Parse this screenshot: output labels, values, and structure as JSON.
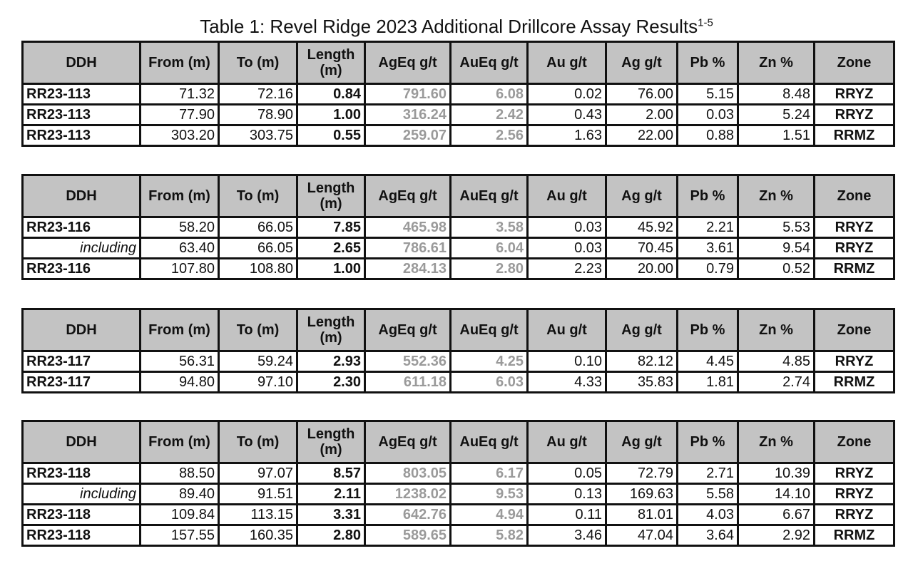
{
  "title": "Table 1: Revel Ridge 2023 Additional Drillcore Assay Results",
  "title_superscript": "1-5",
  "columns": [
    "DDH",
    "From (m)",
    "To (m)",
    "Length (m)",
    "AgEq g/t",
    "AuEq g/t",
    "Au g/t",
    "Ag g/t",
    "Pb %",
    "Zn %",
    "Zone"
  ],
  "tables": [
    {
      "rows": [
        [
          "RR23-113",
          "71.32",
          "72.16",
          "0.84",
          "791.60",
          "6.08",
          "0.02",
          "76.00",
          "5.15",
          "8.48",
          "RRYZ"
        ],
        [
          "RR23-113",
          "77.90",
          "78.90",
          "1.00",
          "316.24",
          "2.42",
          "0.43",
          "2.00",
          "0.03",
          "5.24",
          "RRYZ"
        ],
        [
          "RR23-113",
          "303.20",
          "303.75",
          "0.55",
          "259.07",
          "2.56",
          "1.63",
          "22.00",
          "0.88",
          "1.51",
          "RRMZ"
        ]
      ]
    },
    {
      "rows": [
        [
          "RR23-116",
          "58.20",
          "66.05",
          "7.85",
          "465.98",
          "3.58",
          "0.03",
          "45.92",
          "2.21",
          "5.53",
          "RRYZ"
        ],
        [
          "including",
          "63.40",
          "66.05",
          "2.65",
          "786.61",
          "6.04",
          "0.03",
          "70.45",
          "3.61",
          "9.54",
          "RRYZ"
        ],
        [
          "RR23-116",
          "107.80",
          "108.80",
          "1.00",
          "284.13",
          "2.80",
          "2.23",
          "20.00",
          "0.79",
          "0.52",
          "RRMZ"
        ]
      ]
    },
    {
      "rows": [
        [
          "RR23-117",
          "56.31",
          "59.24",
          "2.93",
          "552.36",
          "4.25",
          "0.10",
          "82.12",
          "4.45",
          "4.85",
          "RRYZ"
        ],
        [
          "RR23-117",
          "94.80",
          "97.10",
          "2.30",
          "611.18",
          "6.03",
          "4.33",
          "35.83",
          "1.81",
          "2.74",
          "RRMZ"
        ]
      ]
    },
    {
      "rows": [
        [
          "RR23-118",
          "88.50",
          "97.07",
          "8.57",
          "803.05",
          "6.17",
          "0.05",
          "72.79",
          "2.71",
          "10.39",
          "RRYZ"
        ],
        [
          "including",
          "89.40",
          "91.51",
          "2.11",
          "1238.02",
          "9.53",
          "0.13",
          "169.63",
          "5.58",
          "14.10",
          "RRYZ"
        ],
        [
          "RR23-118",
          "109.84",
          "113.15",
          "3.31",
          "642.76",
          "4.94",
          "0.11",
          "81.01",
          "4.03",
          "6.67",
          "RRYZ"
        ],
        [
          "RR23-118",
          "157.55",
          "160.35",
          "2.80",
          "589.65",
          "5.82",
          "3.46",
          "47.04",
          "3.64",
          "2.92",
          "RRMZ"
        ]
      ]
    }
  ]
}
